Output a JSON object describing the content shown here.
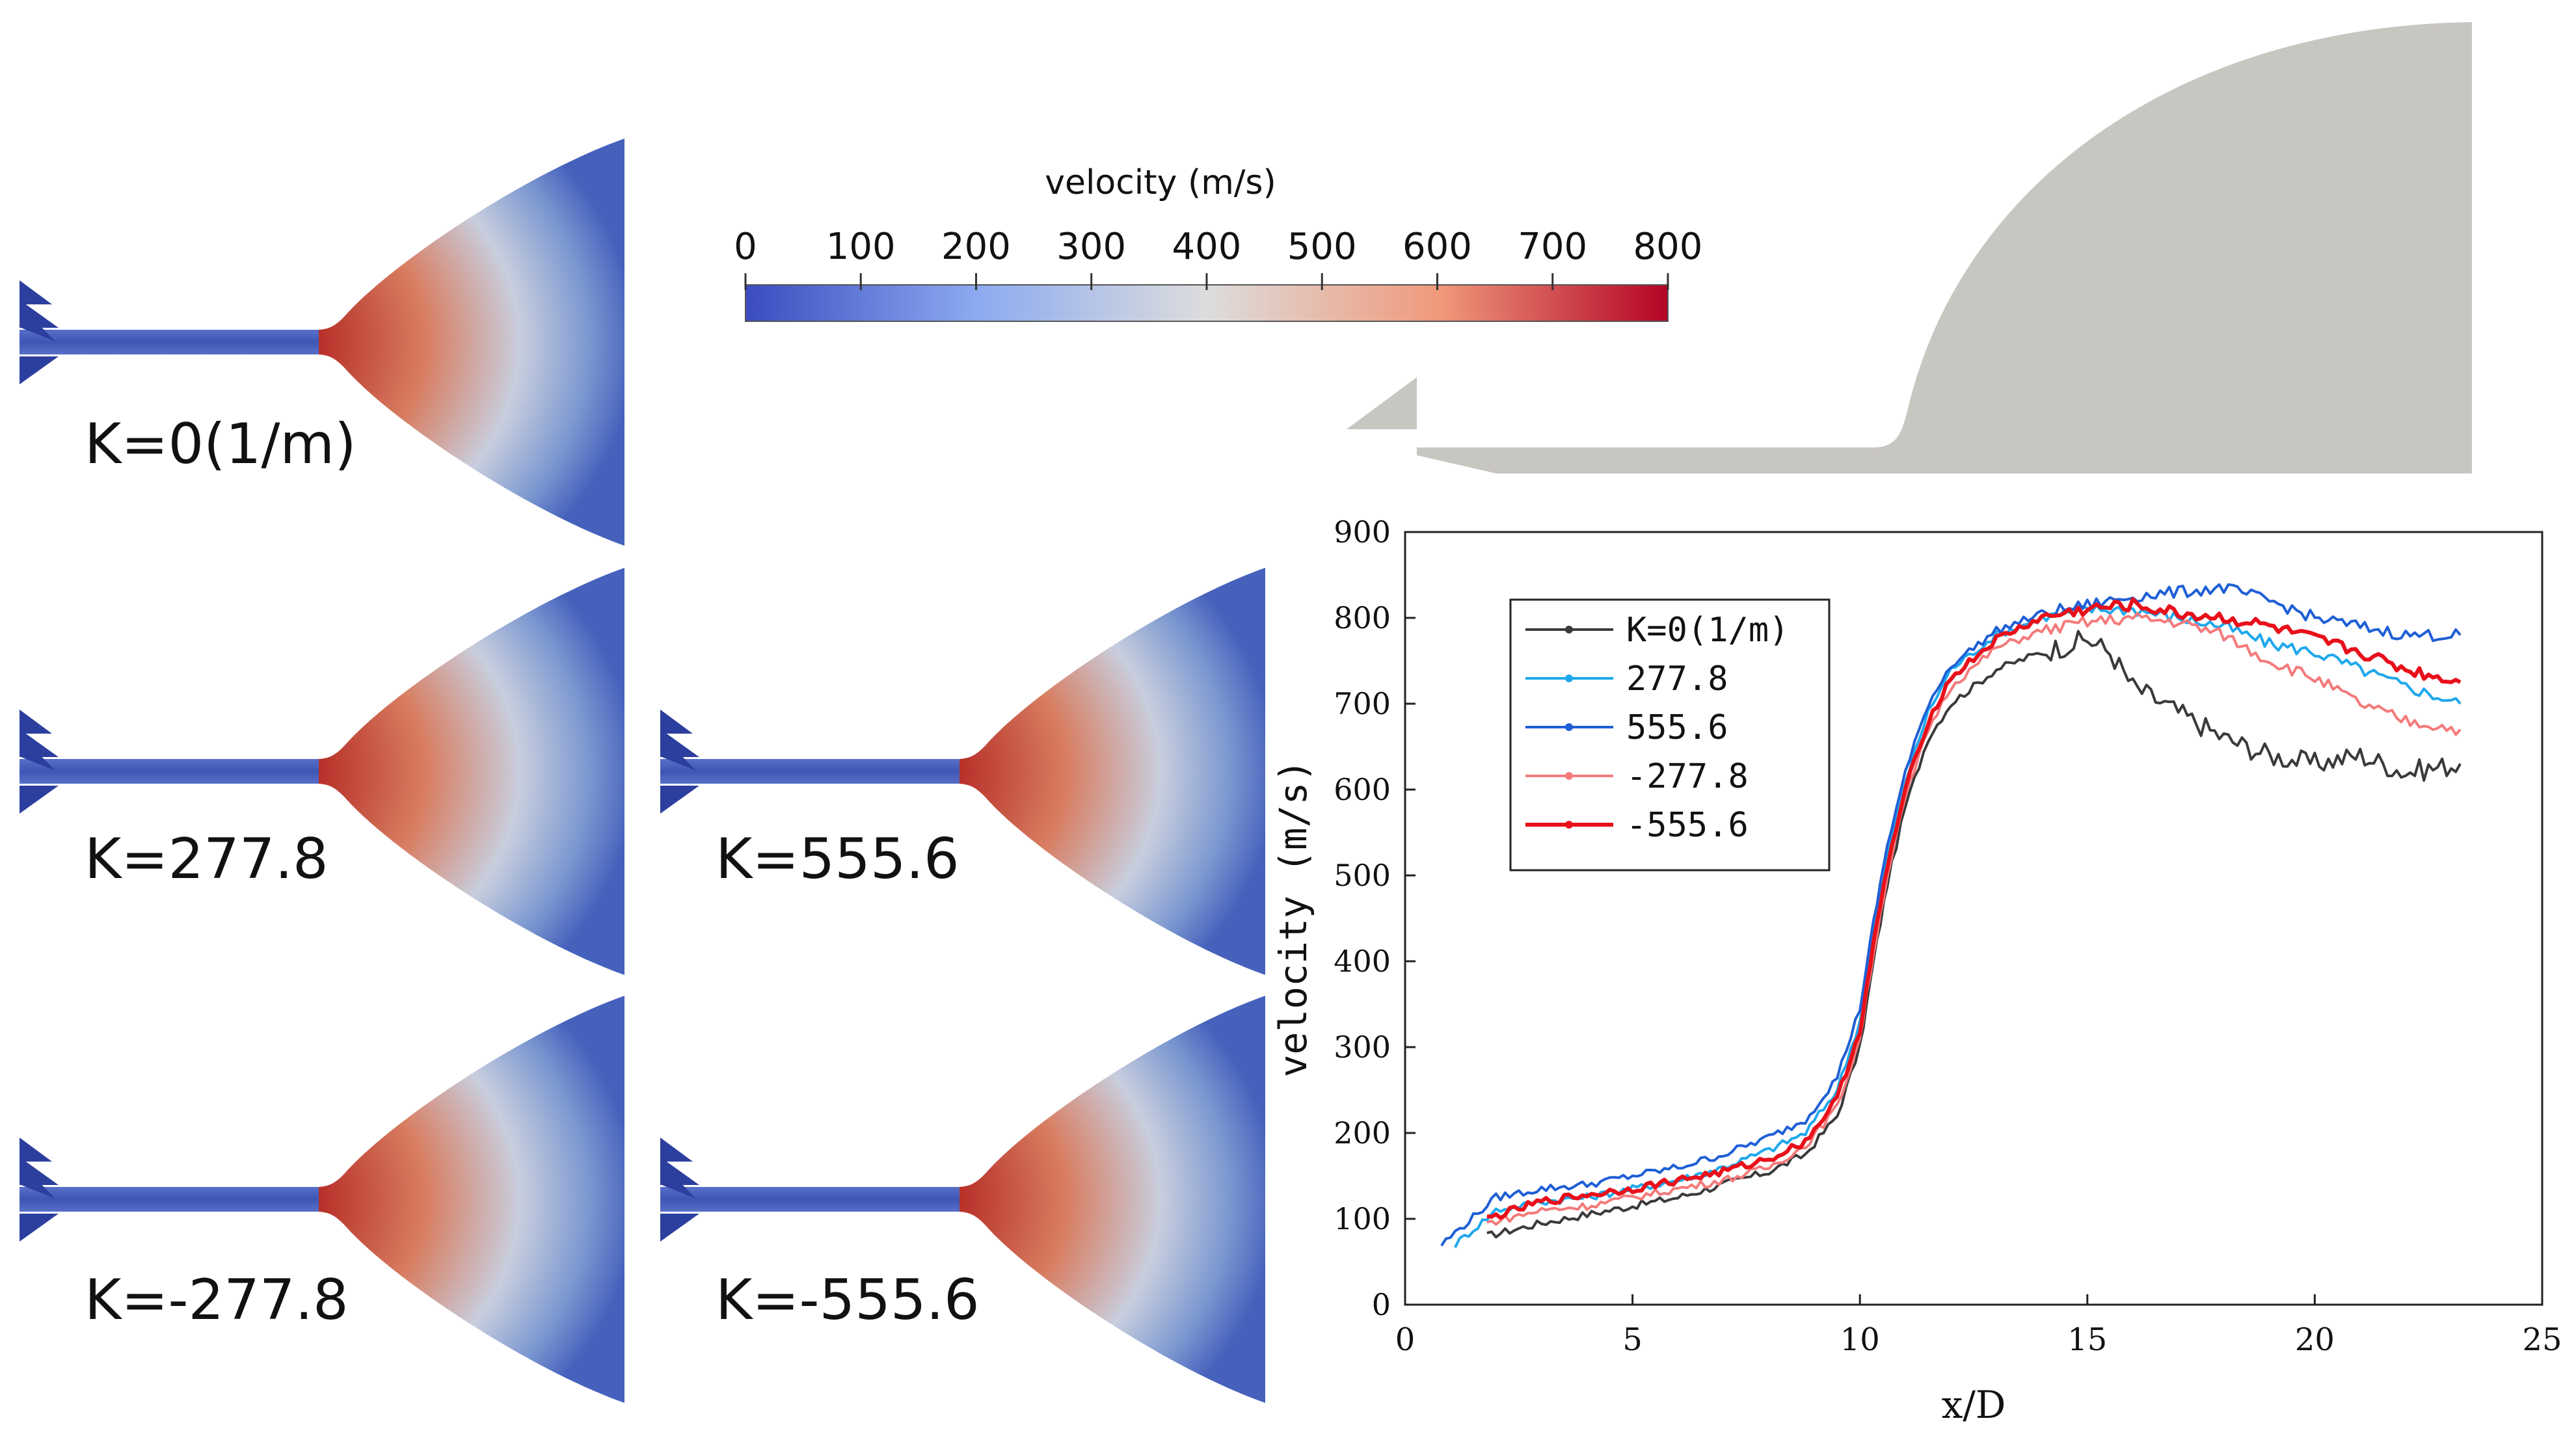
{
  "panels": [
    {
      "label": "K=0(1/m)"
    },
    {
      "label": "K=277.8"
    },
    {
      "label": "K=555.6"
    },
    {
      "label": "K=-277.8"
    },
    {
      "label": "K=-555.6"
    }
  ],
  "colorbar": {
    "title": "velocity (m/s)",
    "ticks": [
      "0",
      "100",
      "200",
      "300",
      "400",
      "500",
      "600",
      "700",
      "800"
    ],
    "range": [
      0,
      800
    ],
    "colors": [
      "#3b4cc0",
      "#dddddd",
      "#b40426"
    ]
  },
  "geometry_color": "#c8c6c0",
  "chart_data": {
    "type": "line",
    "title": "",
    "xlabel": "x/D",
    "ylabel": "velocity (m/s)",
    "xlim": [
      0,
      25
    ],
    "ylim": [
      0,
      900
    ],
    "xticks": [
      "0",
      "5",
      "10",
      "15",
      "20",
      "25"
    ],
    "yticks": [
      "0",
      "100",
      "200",
      "300",
      "400",
      "500",
      "600",
      "700",
      "800",
      "900"
    ],
    "legend_position": "top-left",
    "series": [
      {
        "name": "K=0(1/m)",
        "color": "#3a3a3a",
        "x": [
          1.8,
          3,
          4,
          5,
          6,
          7,
          8,
          8.8,
          9.5,
          10,
          10.3,
          10.6,
          11,
          11.5,
          12,
          13,
          14,
          15,
          15.5,
          16,
          17,
          18,
          19,
          20,
          21,
          22,
          23.2
        ],
        "y": [
          80,
          95,
          105,
          115,
          125,
          140,
          155,
          175,
          220,
          300,
          400,
          490,
          580,
          660,
          700,
          740,
          760,
          775,
          760,
          720,
          690,
          660,
          640,
          630,
          640,
          620,
          630
        ]
      },
      {
        "name": "277.8",
        "color": "#1fa8ec",
        "x": [
          1.1,
          2,
          3,
          4,
          5,
          6,
          7,
          8,
          8.8,
          9.5,
          10,
          10.3,
          10.6,
          11,
          11.5,
          12,
          13,
          14,
          15,
          16,
          17,
          18,
          19,
          20,
          21,
          22,
          23.2
        ],
        "y": [
          70,
          110,
          120,
          125,
          135,
          145,
          160,
          180,
          200,
          250,
          330,
          430,
          520,
          610,
          690,
          740,
          780,
          800,
          810,
          810,
          800,
          790,
          770,
          760,
          740,
          720,
          700
        ]
      },
      {
        "name": "555.6",
        "color": "#1f5fd6",
        "x": [
          0.8,
          2,
          3,
          4,
          5,
          6,
          7,
          8,
          8.8,
          9.5,
          10,
          10.3,
          10.6,
          11,
          11.5,
          12,
          13,
          14,
          15,
          16,
          17,
          18,
          19,
          20,
          21,
          22,
          23.2
        ],
        "y": [
          70,
          125,
          135,
          140,
          150,
          160,
          175,
          195,
          215,
          265,
          345,
          445,
          535,
          620,
          700,
          745,
          785,
          805,
          815,
          825,
          830,
          835,
          820,
          800,
          790,
          780,
          780
        ]
      },
      {
        "name": "-277.8",
        "color": "#f47a7a",
        "x": [
          1.8,
          3,
          4,
          5,
          6,
          7,
          8,
          8.8,
          9.5,
          10,
          10.3,
          10.6,
          11,
          11.5,
          12,
          13,
          14,
          15,
          16,
          17,
          18,
          19,
          20,
          21,
          22,
          23.2
        ],
        "y": [
          95,
          110,
          115,
          125,
          135,
          145,
          160,
          185,
          230,
          310,
          410,
          500,
          590,
          670,
          720,
          765,
          785,
          795,
          800,
          795,
          780,
          750,
          730,
          700,
          680,
          670
        ]
      },
      {
        "name": "-555.6",
        "color": "#e8101a",
        "x": [
          1.8,
          3,
          4,
          5,
          6,
          7,
          8,
          8.8,
          9.5,
          10,
          10.3,
          10.6,
          11,
          11.5,
          12,
          13,
          14,
          15,
          16,
          17,
          18,
          19,
          20,
          21,
          22,
          23.2
        ],
        "y": [
          100,
          120,
          128,
          135,
          145,
          155,
          170,
          190,
          240,
          320,
          420,
          510,
          600,
          680,
          730,
          775,
          800,
          810,
          815,
          805,
          800,
          790,
          775,
          760,
          740,
          725
        ]
      }
    ]
  }
}
